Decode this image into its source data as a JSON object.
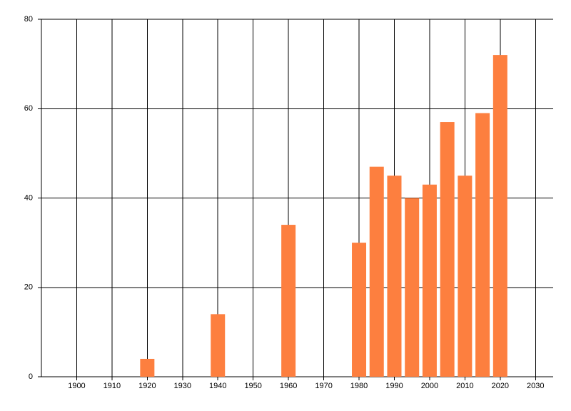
{
  "chart_data": {
    "type": "bar",
    "x": [
      1920,
      1940,
      1960,
      1980,
      1985,
      1990,
      1995,
      2000,
      2005,
      2010,
      2015,
      2020
    ],
    "values": [
      4,
      14,
      34,
      30,
      47,
      45,
      40,
      43,
      57,
      45,
      59,
      72
    ],
    "color": "#fd7f3f",
    "xlim": [
      1890,
      2035
    ],
    "xticks": [
      1900,
      1910,
      1920,
      1930,
      1940,
      1950,
      1960,
      1970,
      1980,
      1990,
      2000,
      2010,
      2020,
      2030
    ],
    "ylim": [
      0,
      80
    ],
    "yticks": [
      0,
      20,
      40,
      60,
      80
    ],
    "grid": true
  }
}
